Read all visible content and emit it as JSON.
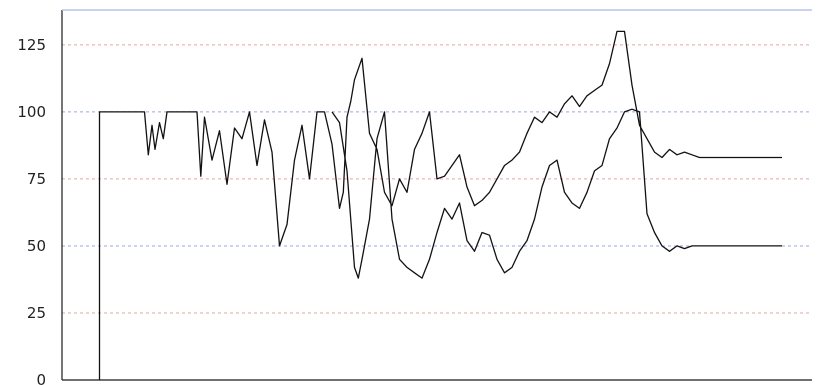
{
  "chart_data": {
    "type": "line",
    "title": "",
    "xlabel": "",
    "ylabel": "",
    "ylim": [
      0,
      138
    ],
    "xlim": [
      0,
      100
    ],
    "grid": true,
    "y_ticks": [
      {
        "value": 0,
        "label": "0"
      },
      {
        "value": 25,
        "label": "25"
      },
      {
        "value": 50,
        "label": "50"
      },
      {
        "value": 75,
        "label": "75"
      },
      {
        "value": 100,
        "label": "100"
      },
      {
        "value": 125,
        "label": "125"
      }
    ],
    "grid_colors": [
      "#9aa7e0",
      "#e6a3a3"
    ],
    "series": [
      {
        "x": [
          5,
          5,
          11,
          11.5,
          12,
          12.4,
          13,
          13.5,
          14,
          18,
          18.5,
          19,
          20,
          21,
          22,
          23,
          24,
          25,
          26,
          27,
          28,
          29,
          30,
          31,
          32,
          33,
          34,
          35,
          36,
          37,
          37.5,
          38,
          38.5,
          39,
          40,
          41,
          42,
          43,
          44,
          45,
          46,
          47,
          48,
          49,
          50,
          51,
          52,
          53,
          54,
          55,
          56,
          57,
          58,
          59,
          60,
          61,
          62,
          63,
          64,
          65,
          66,
          67,
          68,
          69,
          70,
          71,
          72,
          73,
          74,
          75,
          76,
          77,
          78,
          79,
          80,
          81,
          82,
          83,
          84,
          85,
          86,
          87,
          88,
          89,
          90,
          91,
          92,
          93,
          94,
          95,
          96
        ],
        "y": [
          0,
          100,
          100,
          84,
          95,
          86,
          96,
          90,
          100,
          100,
          76,
          98,
          82,
          93,
          73,
          94,
          90,
          100,
          80,
          97,
          85,
          50,
          58,
          82,
          95,
          75,
          100,
          100,
          88,
          64,
          70,
          98,
          104,
          112,
          120,
          92,
          86,
          70,
          65,
          75,
          70,
          86,
          92,
          100,
          75,
          76,
          80,
          84,
          72,
          65,
          67,
          70,
          75,
          80,
          82,
          85,
          92,
          98,
          96,
          100,
          98,
          103,
          106,
          102,
          106,
          108,
          110,
          118,
          130,
          130,
          110,
          95,
          90,
          85,
          83,
          86,
          84,
          85,
          84,
          83,
          83,
          83,
          83,
          83,
          83,
          83,
          83,
          83,
          83,
          83,
          83
        ]
      },
      {
        "x": [
          36,
          37,
          38,
          39,
          39.5,
          40,
          41,
          42,
          43,
          44,
          45,
          46,
          47,
          48,
          49,
          50,
          51,
          52,
          53,
          54,
          55,
          56,
          57,
          58,
          59,
          60,
          61,
          62,
          63,
          64,
          65,
          66,
          67,
          68,
          69,
          70,
          71,
          72,
          73,
          74,
          75,
          76,
          77,
          78,
          79,
          80,
          81,
          82,
          83,
          84,
          85,
          86,
          87,
          88,
          89,
          90,
          91,
          92,
          93,
          94,
          95,
          96
        ],
        "y": [
          100,
          96,
          78,
          42,
          38,
          45,
          60,
          90,
          100,
          60,
          45,
          42,
          40,
          38,
          45,
          55,
          64,
          60,
          66,
          52,
          48,
          55,
          54,
          45,
          40,
          42,
          48,
          52,
          60,
          72,
          80,
          82,
          70,
          66,
          64,
          70,
          78,
          80,
          90,
          94,
          100,
          101,
          100,
          62,
          55,
          50,
          48,
          50,
          49,
          50,
          50,
          50,
          50,
          50,
          50,
          50,
          50,
          50,
          50,
          50,
          50,
          50
        ]
      }
    ]
  }
}
